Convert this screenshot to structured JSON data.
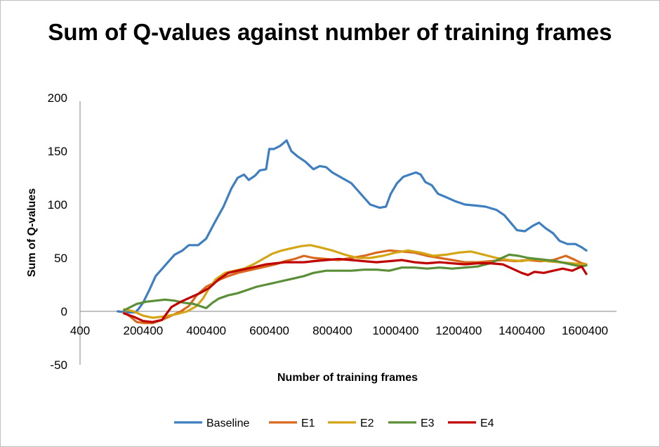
{
  "chart_data": {
    "type": "line",
    "title": "Sum of Q-values against number of training frames",
    "xlabel": "Number of training frames",
    "ylabel": "Sum of Q-values",
    "xlim": [
      400,
      1700400
    ],
    "ylim": [
      -50,
      200
    ],
    "x_ticks": [
      400,
      200400,
      400400,
      600400,
      800400,
      1000400,
      1200400,
      1400400,
      1600400
    ],
    "x_tick_labels": [
      "400",
      "200400",
      "400400",
      "600400",
      "800400",
      "1000400",
      "1200400",
      "1400400",
      "1600400"
    ],
    "y_ticks": [
      -50,
      0,
      50,
      100,
      150,
      200
    ],
    "y_tick_labels": [
      "-50",
      "0",
      "50",
      "100",
      "150",
      "200"
    ],
    "grid": false,
    "legend_position": "bottom",
    "series": [
      {
        "name": "Baseline",
        "color": "#3f7fc0",
        "points": [
          [
            120000,
            0
          ],
          [
            150000,
            -1
          ],
          [
            175000,
            -1
          ],
          [
            185000,
            2
          ],
          [
            200000,
            8
          ],
          [
            220000,
            20
          ],
          [
            240000,
            33
          ],
          [
            270000,
            43
          ],
          [
            300000,
            53
          ],
          [
            325000,
            57
          ],
          [
            345000,
            62
          ],
          [
            375000,
            62
          ],
          [
            400000,
            68
          ],
          [
            425000,
            82
          ],
          [
            455000,
            98
          ],
          [
            480000,
            115
          ],
          [
            500000,
            125
          ],
          [
            520000,
            128
          ],
          [
            535000,
            123
          ],
          [
            555000,
            127
          ],
          [
            570000,
            132
          ],
          [
            590000,
            133
          ],
          [
            600000,
            152
          ],
          [
            615000,
            152
          ],
          [
            635000,
            155
          ],
          [
            655000,
            160
          ],
          [
            670000,
            150
          ],
          [
            690000,
            145
          ],
          [
            715000,
            140
          ],
          [
            740000,
            133
          ],
          [
            760000,
            136
          ],
          [
            780000,
            135
          ],
          [
            800000,
            130
          ],
          [
            830000,
            125
          ],
          [
            860000,
            120
          ],
          [
            890000,
            110
          ],
          [
            920000,
            100
          ],
          [
            950000,
            97
          ],
          [
            970000,
            98
          ],
          [
            985000,
            110
          ],
          [
            1005000,
            120
          ],
          [
            1025000,
            126
          ],
          [
            1045000,
            128
          ],
          [
            1065000,
            130
          ],
          [
            1080000,
            128
          ],
          [
            1095000,
            121
          ],
          [
            1115000,
            118
          ],
          [
            1135000,
            110
          ],
          [
            1160000,
            107
          ],
          [
            1190000,
            103
          ],
          [
            1220000,
            100
          ],
          [
            1255000,
            99
          ],
          [
            1285000,
            98
          ],
          [
            1320000,
            95
          ],
          [
            1345000,
            90
          ],
          [
            1365000,
            83
          ],
          [
            1385000,
            76
          ],
          [
            1410000,
            75
          ],
          [
            1435000,
            80
          ],
          [
            1455000,
            83
          ],
          [
            1475000,
            78
          ],
          [
            1500000,
            73
          ],
          [
            1520000,
            66
          ],
          [
            1545000,
            63
          ],
          [
            1570000,
            63
          ],
          [
            1590000,
            60
          ],
          [
            1605000,
            57
          ]
        ]
      },
      {
        "name": "E1",
        "color": "#d9691e",
        "points": [
          [
            140000,
            -1
          ],
          [
            160000,
            -5
          ],
          [
            180000,
            -10
          ],
          [
            205000,
            -11
          ],
          [
            230000,
            -11
          ],
          [
            260000,
            -8
          ],
          [
            290000,
            -4
          ],
          [
            320000,
            0
          ],
          [
            345000,
            5
          ],
          [
            370000,
            15
          ],
          [
            400000,
            23
          ],
          [
            420000,
            26
          ],
          [
            445000,
            30
          ],
          [
            470000,
            33
          ],
          [
            500000,
            36
          ],
          [
            530000,
            38
          ],
          [
            560000,
            40
          ],
          [
            590000,
            42
          ],
          [
            620000,
            44
          ],
          [
            650000,
            47
          ],
          [
            680000,
            49
          ],
          [
            710000,
            52
          ],
          [
            740000,
            50
          ],
          [
            780000,
            49
          ],
          [
            820000,
            48
          ],
          [
            860000,
            50
          ],
          [
            900000,
            52
          ],
          [
            940000,
            55
          ],
          [
            980000,
            57
          ],
          [
            1020000,
            56
          ],
          [
            1060000,
            55
          ],
          [
            1100000,
            52
          ],
          [
            1140000,
            50
          ],
          [
            1180000,
            48
          ],
          [
            1220000,
            46
          ],
          [
            1260000,
            46
          ],
          [
            1300000,
            47
          ],
          [
            1340000,
            48
          ],
          [
            1380000,
            47
          ],
          [
            1420000,
            48
          ],
          [
            1460000,
            47
          ],
          [
            1500000,
            48
          ],
          [
            1540000,
            52
          ],
          [
            1570000,
            48
          ],
          [
            1590000,
            45
          ],
          [
            1605000,
            44
          ]
        ]
      },
      {
        "name": "E2",
        "color": "#d4a514",
        "points": [
          [
            140000,
            2
          ],
          [
            170000,
            0
          ],
          [
            200000,
            -4
          ],
          [
            230000,
            -6
          ],
          [
            260000,
            -5
          ],
          [
            300000,
            -3
          ],
          [
            340000,
            0
          ],
          [
            370000,
            5
          ],
          [
            390000,
            12
          ],
          [
            410000,
            22
          ],
          [
            430000,
            30
          ],
          [
            460000,
            36
          ],
          [
            490000,
            38
          ],
          [
            520000,
            40
          ],
          [
            550000,
            44
          ],
          [
            580000,
            49
          ],
          [
            610000,
            54
          ],
          [
            640000,
            57
          ],
          [
            670000,
            59
          ],
          [
            700000,
            61
          ],
          [
            730000,
            62
          ],
          [
            760000,
            60
          ],
          [
            800000,
            57
          ],
          [
            840000,
            53
          ],
          [
            880000,
            50
          ],
          [
            920000,
            50
          ],
          [
            960000,
            52
          ],
          [
            1000000,
            55
          ],
          [
            1040000,
            57
          ],
          [
            1080000,
            55
          ],
          [
            1120000,
            52
          ],
          [
            1160000,
            53
          ],
          [
            1200000,
            55
          ],
          [
            1240000,
            56
          ],
          [
            1280000,
            53
          ],
          [
            1320000,
            50
          ],
          [
            1360000,
            48
          ],
          [
            1400000,
            47
          ],
          [
            1440000,
            49
          ],
          [
            1480000,
            47
          ],
          [
            1520000,
            46
          ],
          [
            1560000,
            45
          ],
          [
            1590000,
            44
          ],
          [
            1605000,
            44
          ]
        ]
      },
      {
        "name": "E3",
        "color": "#5a8f38",
        "points": [
          [
            140000,
            1
          ],
          [
            160000,
            4
          ],
          [
            180000,
            7
          ],
          [
            210000,
            9
          ],
          [
            240000,
            10
          ],
          [
            270000,
            11
          ],
          [
            300000,
            10
          ],
          [
            330000,
            8
          ],
          [
            360000,
            7
          ],
          [
            380000,
            5
          ],
          [
            400000,
            3
          ],
          [
            420000,
            8
          ],
          [
            440000,
            12
          ],
          [
            470000,
            15
          ],
          [
            500000,
            17
          ],
          [
            530000,
            20
          ],
          [
            560000,
            23
          ],
          [
            590000,
            25
          ],
          [
            620000,
            27
          ],
          [
            650000,
            29
          ],
          [
            680000,
            31
          ],
          [
            710000,
            33
          ],
          [
            740000,
            36
          ],
          [
            780000,
            38
          ],
          [
            820000,
            38
          ],
          [
            860000,
            38
          ],
          [
            900000,
            39
          ],
          [
            940000,
            39
          ],
          [
            980000,
            38
          ],
          [
            1020000,
            41
          ],
          [
            1060000,
            41
          ],
          [
            1100000,
            40
          ],
          [
            1140000,
            41
          ],
          [
            1180000,
            40
          ],
          [
            1220000,
            41
          ],
          [
            1260000,
            42
          ],
          [
            1300000,
            45
          ],
          [
            1330000,
            49
          ],
          [
            1360000,
            53
          ],
          [
            1390000,
            52
          ],
          [
            1420000,
            50
          ],
          [
            1450000,
            49
          ],
          [
            1480000,
            48
          ],
          [
            1510000,
            47
          ],
          [
            1540000,
            45
          ],
          [
            1570000,
            43
          ],
          [
            1590000,
            42
          ],
          [
            1605000,
            43
          ]
        ]
      },
      {
        "name": "E4",
        "color": "#c00000",
        "points": [
          [
            140000,
            -2
          ],
          [
            170000,
            -5
          ],
          [
            200000,
            -9
          ],
          [
            230000,
            -10
          ],
          [
            260000,
            -8
          ],
          [
            290000,
            4
          ],
          [
            320000,
            9
          ],
          [
            350000,
            13
          ],
          [
            380000,
            17
          ],
          [
            410000,
            22
          ],
          [
            440000,
            30
          ],
          [
            470000,
            36
          ],
          [
            500000,
            38
          ],
          [
            530000,
            40
          ],
          [
            560000,
            42
          ],
          [
            590000,
            44
          ],
          [
            620000,
            45
          ],
          [
            650000,
            46
          ],
          [
            680000,
            46
          ],
          [
            710000,
            46
          ],
          [
            740000,
            47
          ],
          [
            780000,
            48
          ],
          [
            820000,
            49
          ],
          [
            860000,
            48
          ],
          [
            900000,
            47
          ],
          [
            940000,
            46
          ],
          [
            980000,
            47
          ],
          [
            1020000,
            48
          ],
          [
            1060000,
            46
          ],
          [
            1100000,
            45
          ],
          [
            1140000,
            46
          ],
          [
            1180000,
            45
          ],
          [
            1220000,
            44
          ],
          [
            1260000,
            45
          ],
          [
            1300000,
            45
          ],
          [
            1340000,
            44
          ],
          [
            1370000,
            40
          ],
          [
            1400000,
            36
          ],
          [
            1420000,
            34
          ],
          [
            1440000,
            37
          ],
          [
            1470000,
            36
          ],
          [
            1500000,
            38
          ],
          [
            1530000,
            40
          ],
          [
            1560000,
            38
          ],
          [
            1590000,
            42
          ],
          [
            1605000,
            35
          ]
        ]
      }
    ]
  }
}
